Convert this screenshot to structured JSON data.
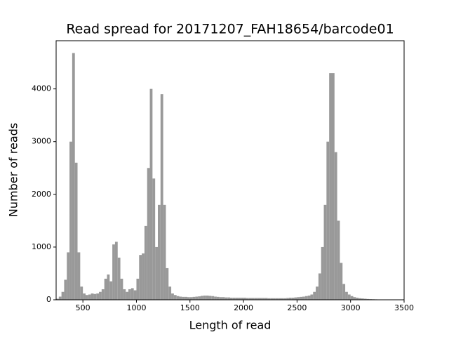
{
  "chart_data": {
    "type": "histogram",
    "title": "Read spread for 20171207_FAH18654/barcode01",
    "x_label": "Length of read",
    "y_label": "Number of reads",
    "color": "#999999",
    "bins": [
      250,
      275,
      300,
      325,
      350,
      375,
      400,
      425,
      450,
      475,
      500,
      525,
      550,
      575,
      600,
      625,
      650,
      675,
      700,
      725,
      750,
      775,
      800,
      825,
      850,
      875,
      900,
      925,
      950,
      975,
      1000,
      1025,
      1050,
      1075,
      1100,
      1125,
      1150,
      1175,
      1200,
      1225,
      1250,
      1275,
      1300,
      1325,
      1350,
      1375,
      1400,
      1425,
      1450,
      1475,
      1500,
      1525,
      1550,
      1575,
      1600,
      1625,
      1650,
      1675,
      1700,
      1725,
      1750,
      1775,
      1800,
      1825,
      1850,
      1875,
      1900,
      1925,
      1950,
      1975,
      2000,
      2025,
      2050,
      2075,
      2100,
      2125,
      2150,
      2175,
      2200,
      2225,
      2250,
      2275,
      2300,
      2325,
      2350,
      2375,
      2400,
      2425,
      2450,
      2475,
      2500,
      2525,
      2550,
      2575,
      2600,
      2625,
      2650,
      2675,
      2700,
      2725,
      2750,
      2775,
      2800,
      2825,
      2850,
      2875,
      2900,
      2925,
      2950,
      2975,
      3000,
      3025,
      3050,
      3075,
      3100,
      3125,
      3150,
      3175,
      3200,
      3225,
      3250,
      3275,
      3300,
      3325,
      3350,
      3375,
      3400
    ],
    "counts": [
      20,
      60,
      150,
      380,
      900,
      3000,
      4680,
      2600,
      900,
      250,
      120,
      90,
      100,
      120,
      110,
      120,
      150,
      200,
      400,
      480,
      350,
      1050,
      1100,
      800,
      400,
      200,
      150,
      200,
      220,
      180,
      400,
      850,
      880,
      1400,
      2500,
      4000,
      2300,
      1000,
      1800,
      3900,
      1800,
      600,
      250,
      120,
      90,
      70,
      60,
      55,
      55,
      50,
      50,
      55,
      60,
      65,
      75,
      80,
      80,
      75,
      70,
      60,
      55,
      50,
      50,
      45,
      45,
      40,
      40,
      40,
      40,
      40,
      40,
      35,
      35,
      35,
      35,
      35,
      35,
      35,
      35,
      30,
      30,
      30,
      30,
      30,
      30,
      30,
      35,
      40,
      40,
      45,
      50,
      55,
      60,
      70,
      80,
      100,
      150,
      250,
      500,
      1000,
      1800,
      3000,
      4300,
      4300,
      2800,
      1500,
      700,
      300,
      150,
      100,
      70,
      50,
      40,
      30,
      25,
      20,
      15,
      12,
      10,
      8,
      6,
      5,
      4,
      3,
      2,
      2
    ],
    "xlim": [
      250,
      3500
    ],
    "xticks": [
      500,
      1000,
      1500,
      2000,
      2500,
      3000,
      3500
    ],
    "ylim": [
      0,
      4914
    ],
    "yticks": [
      0,
      1000,
      2000,
      3000,
      4000
    ]
  }
}
